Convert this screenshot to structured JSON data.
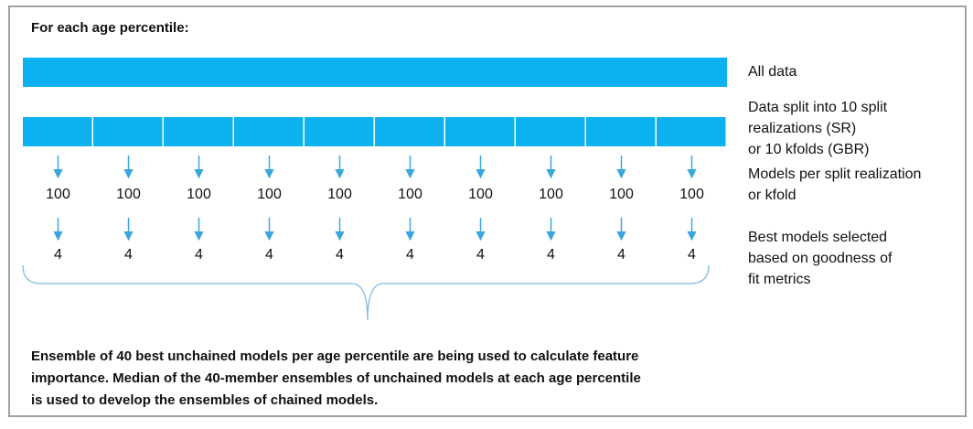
{
  "header": {
    "title": "For each age percentile:"
  },
  "side_labels": [
    {
      "lines": [
        "All data"
      ]
    },
    {
      "lines": [
        "Data split into 10 split",
        "realizations (SR)",
        "or 10 kfolds (GBR)"
      ]
    },
    {
      "lines": [
        "Models per split realization",
        " or kfold"
      ]
    },
    {
      "lines": [
        "Best models selected",
        "based on goodness of",
        "fit metrics"
      ]
    }
  ],
  "models_per_split": [
    100,
    100,
    100,
    100,
    100,
    100,
    100,
    100,
    100,
    100
  ],
  "best_models": [
    4,
    4,
    4,
    4,
    4,
    4,
    4,
    4,
    4,
    4
  ],
  "footer": {
    "lines": [
      "Ensemble of 40 best unchained models per age percentile are being used to calculate feature",
      "importance. Median of the 40-member ensembles of unchained models at each age percentile",
      "is used to develop the ensembles of chained models."
    ]
  }
}
